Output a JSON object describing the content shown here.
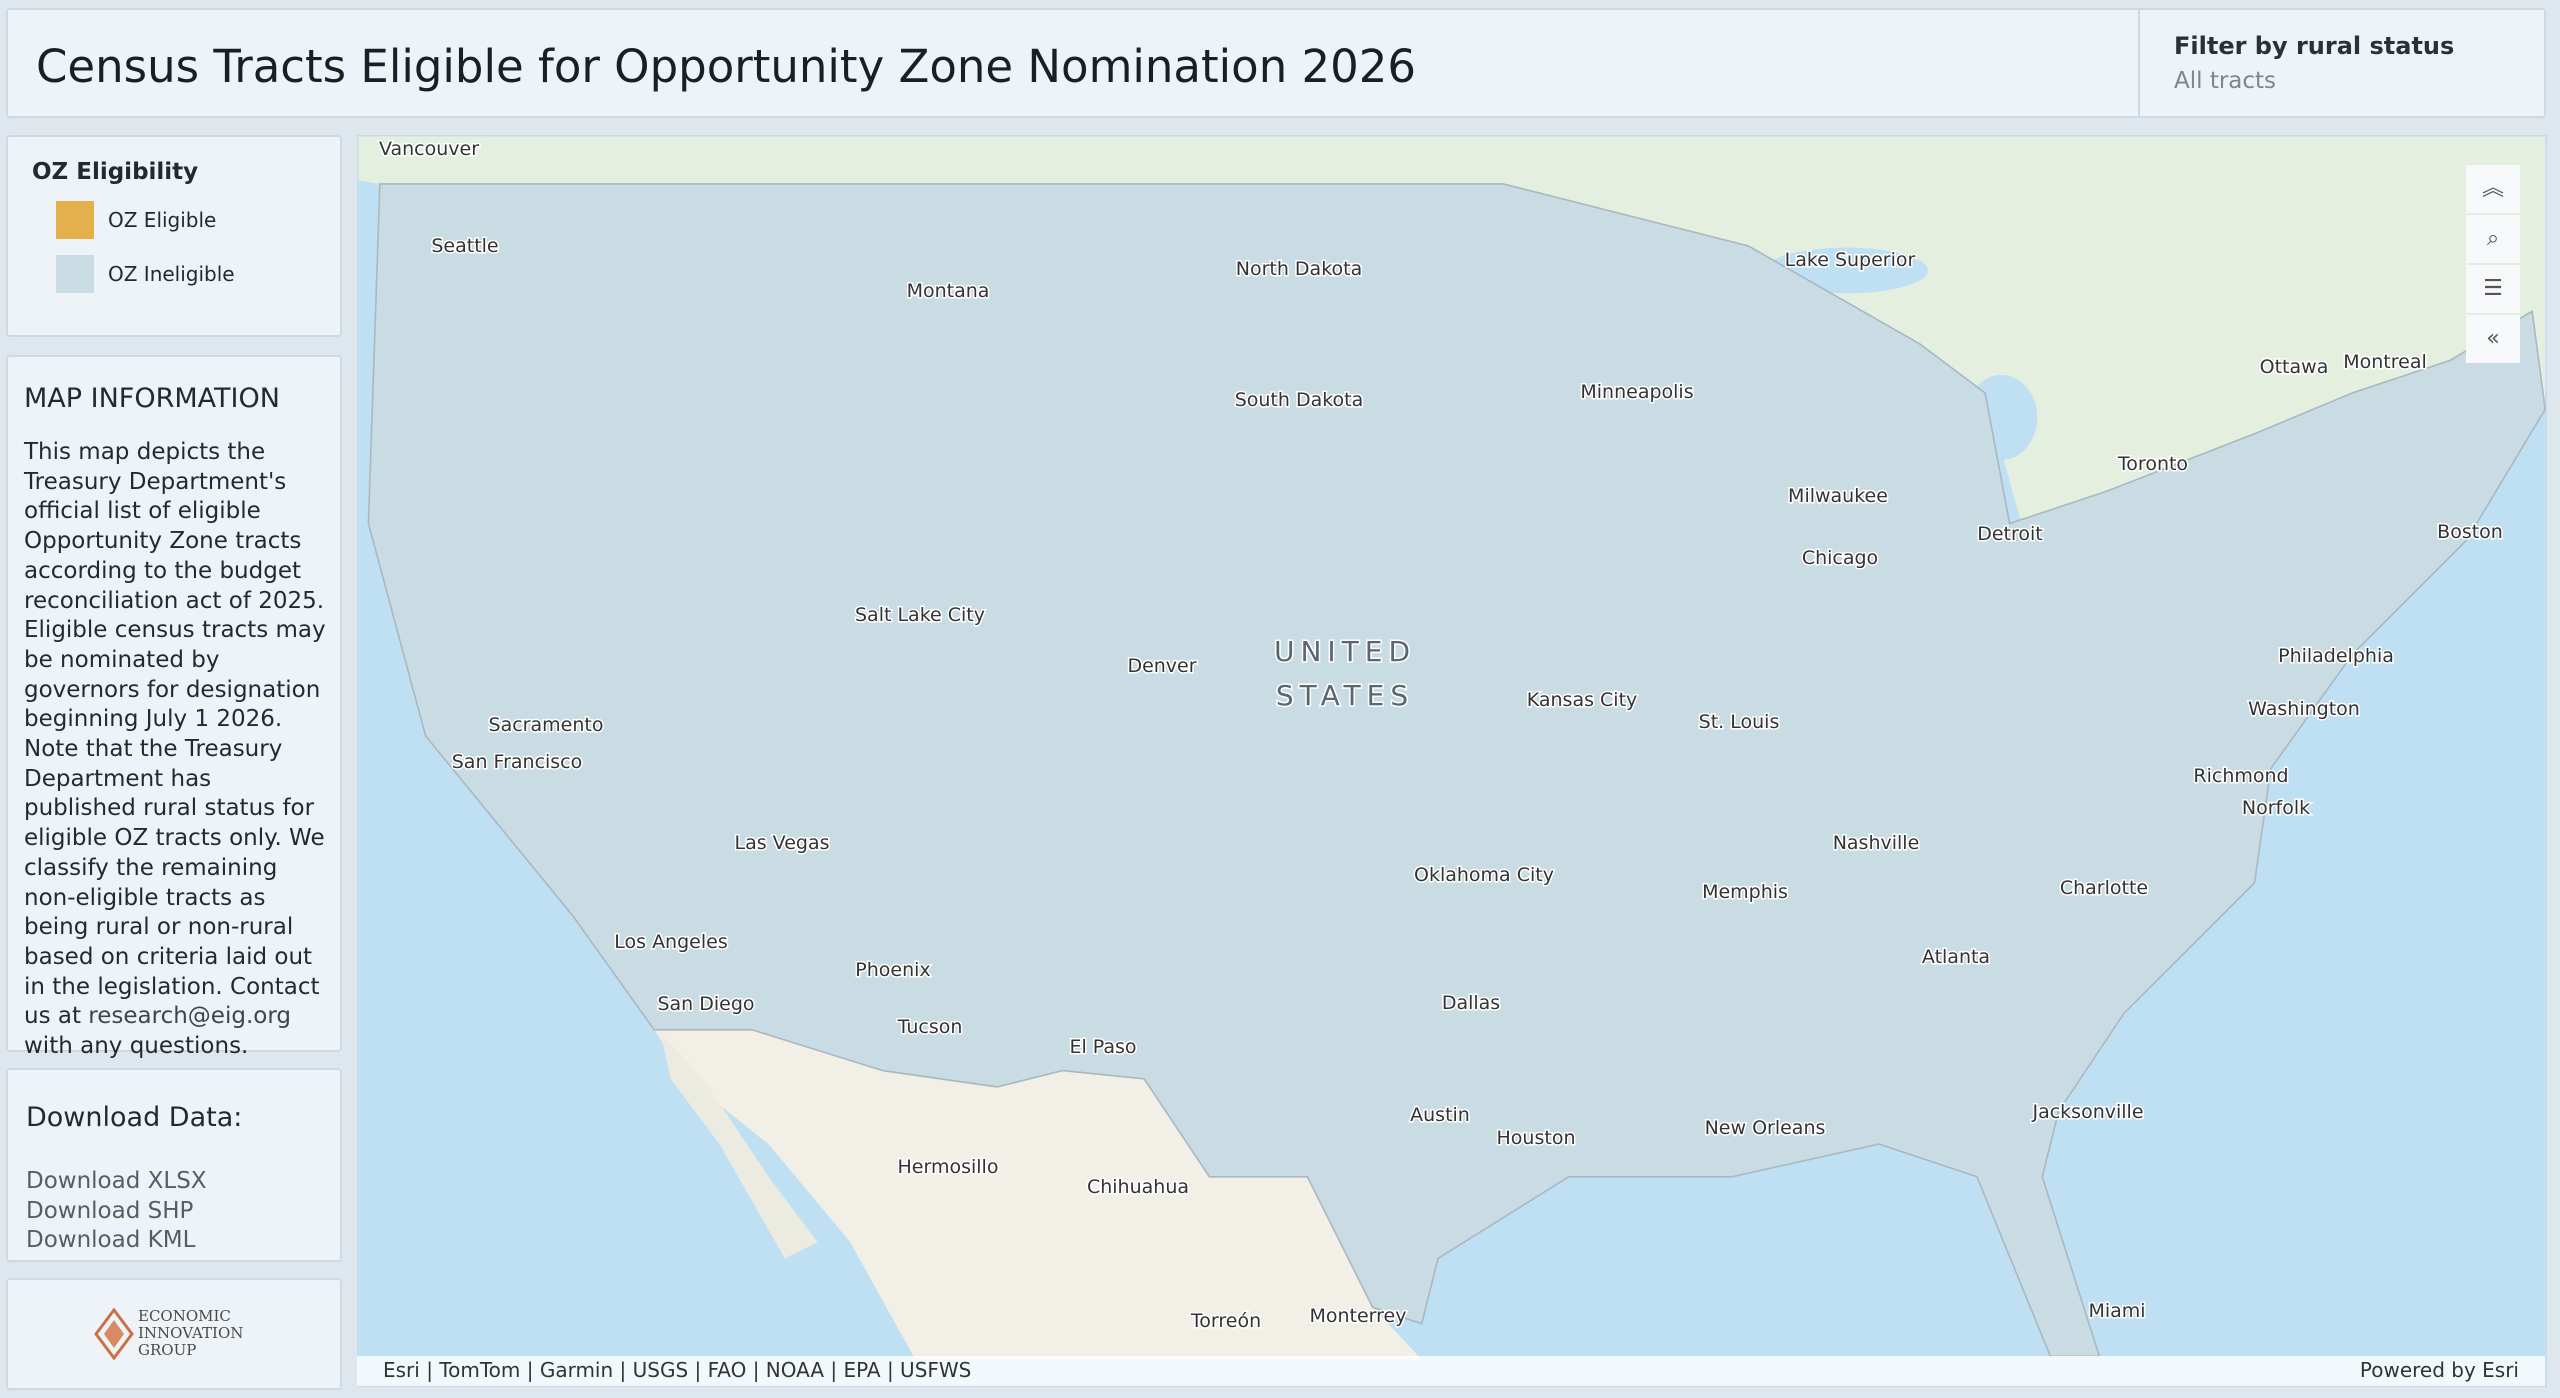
{
  "header": {
    "title": "Census Tracts Eligible for Opportunity Zone Nomination 2026",
    "filter": {
      "label": "Filter by rural status",
      "value": "All tracts"
    }
  },
  "legend": {
    "title": "OZ Eligibility",
    "items": [
      {
        "label": "OZ Eligible",
        "color": "#e3b04b"
      },
      {
        "label": "OZ Ineligible",
        "color": "#c9dbe3"
      }
    ]
  },
  "map_information": {
    "title": "MAP INFORMATION",
    "text": "This map depicts the Treasury Department's official list of eligible Opportunity Zone tracts according to the budget reconciliation act of 2025. Eligible census tracts may be nominated by governors for designation beginning July 1 2026. Note that the Treasury Department has published rural status for eligible OZ tracts only. We classify the remaining non-eligible tracts as being rural or non-rural based on criteria laid out in the legislation. Contact us at",
    "email": "research@eig.org",
    "text_end": "with any questions."
  },
  "download": {
    "title": "Download Data:",
    "links": [
      "Download XLSX",
      "Download SHP",
      "Download KML"
    ]
  },
  "logo": {
    "lines": [
      "ECONOMIC",
      "INNOVATION",
      "GROUP"
    ]
  },
  "map": {
    "labels": [
      "Vancouver",
      "Seattle",
      "Montana",
      "North Dakota",
      "Lake Superior",
      "Minneapolis",
      "South Dakota",
      "Ottawa",
      "Montreal",
      "Toronto",
      "Milwaukee",
      "Detroit",
      "Chicago",
      "Boston",
      "Salt Lake City",
      "Denver",
      "Kansas City",
      "St. Louis",
      "Philadelphia",
      "Washington",
      "Sacramento",
      "San Francisco",
      "Las Vegas",
      "Nashville",
      "Richmond",
      "Norfolk",
      "Oklahoma City",
      "Memphis",
      "Charlotte",
      "Los Angeles",
      "Phoenix",
      "San Diego",
      "Dallas",
      "Atlanta",
      "Tucson",
      "El Paso",
      "Austin",
      "Houston",
      "New Orleans",
      "Jacksonville",
      "Hermosillo",
      "Chihuahua",
      "Miami",
      "Torreón",
      "Monterrey"
    ],
    "country_label": [
      "UNITED",
      "STATES"
    ],
    "attribution": "Esri | TomTom | Garmin | USGS | FAO | NOAA | EPA | USFWS",
    "powered_by": "Powered by Esri"
  }
}
